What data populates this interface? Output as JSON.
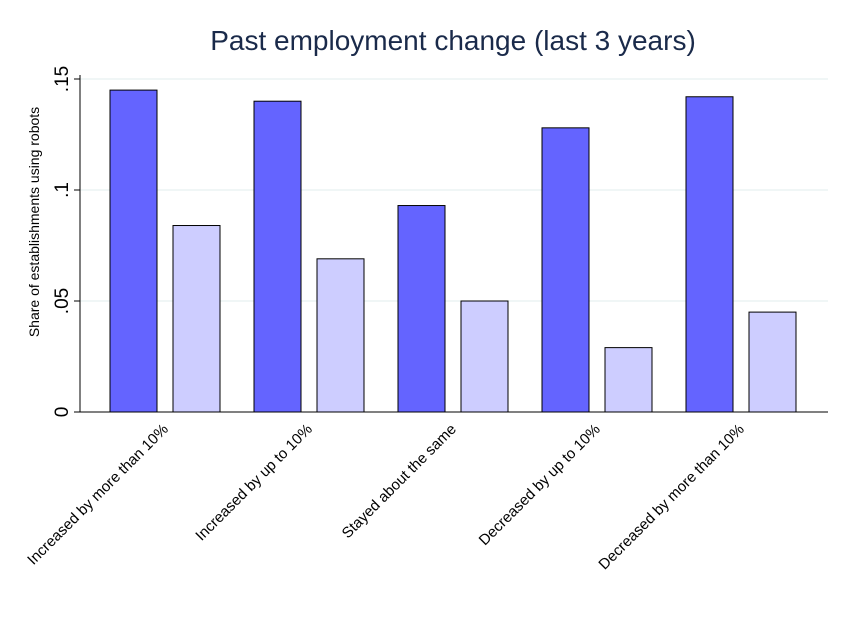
{
  "chart_data": {
    "type": "bar",
    "title": "Past employment change (last 3 years)",
    "ylabel": "Share of establishments using robots",
    "xlabel": "",
    "ylim": [
      0,
      0.15
    ],
    "yticks": [
      0,
      0.05,
      0.1,
      0.15
    ],
    "ytick_labels": [
      "0",
      ".05",
      ".1",
      ".15"
    ],
    "grid": true,
    "categories": [
      "Increased by more than 10%",
      "Increased by up to 10%",
      "Stayed about the same",
      "Decreased by up to 10%",
      "Decreased by more than 10%"
    ],
    "series": [
      {
        "values": [
          0.145,
          0.14,
          0.093,
          0.128,
          0.142
        ],
        "color": "#6464ff"
      },
      {
        "values": [
          0.084,
          0.069,
          0.05,
          0.029,
          0.045
        ],
        "color": "#cdcdff"
      }
    ]
  }
}
